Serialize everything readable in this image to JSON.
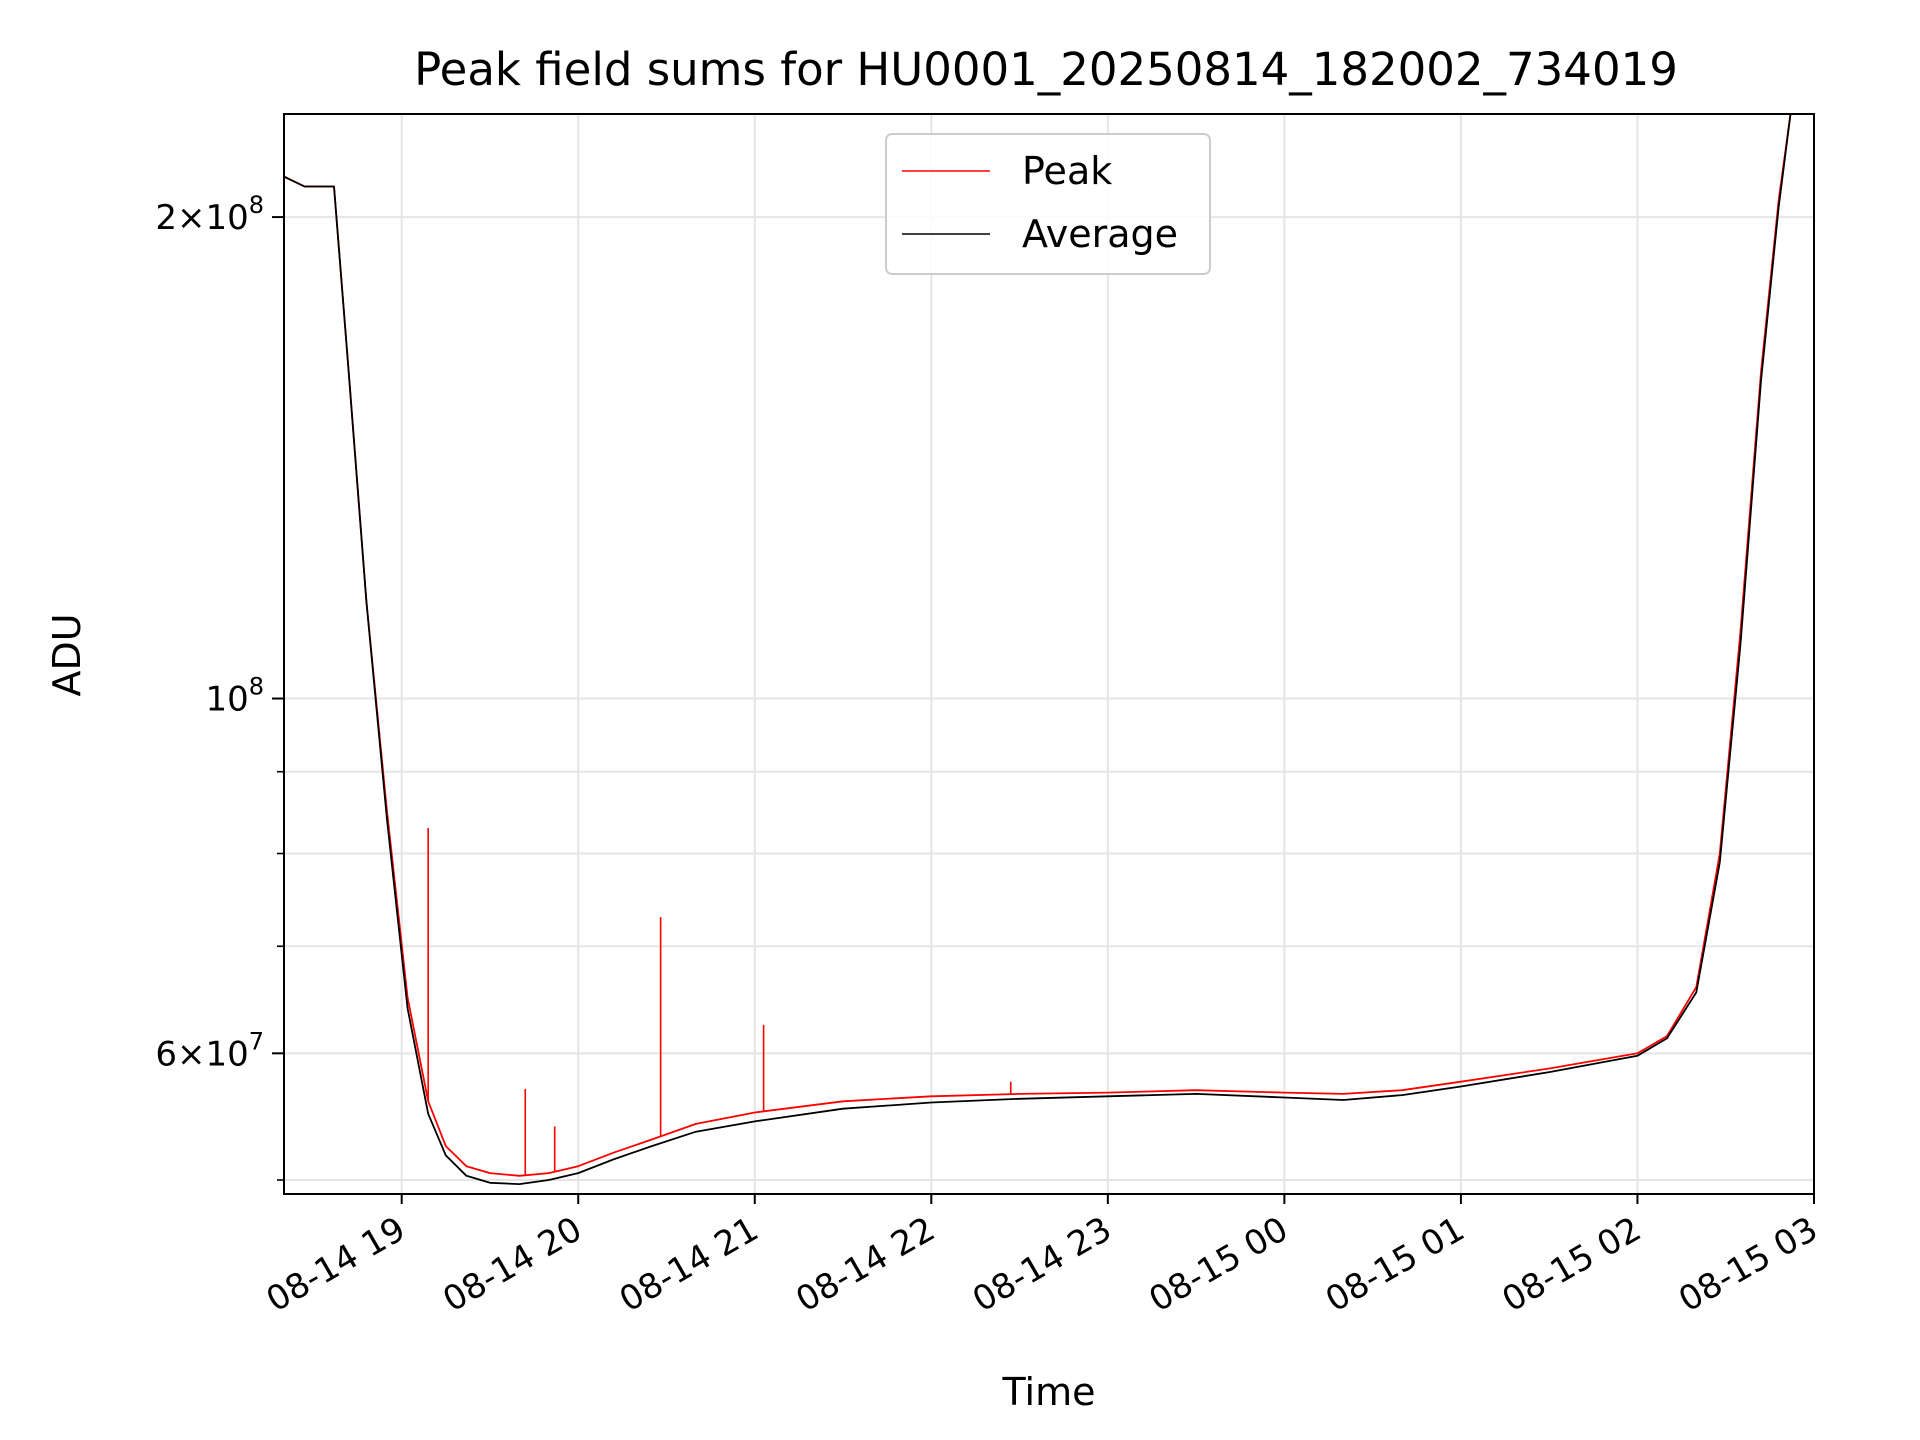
{
  "chart_data": {
    "type": "line",
    "title": "Peak field sums for HU0001_20250814_182002_734019",
    "xlabel": "Time",
    "ylabel": "ADU",
    "y_scale": "log",
    "ylim": [
      49000000,
      232000000
    ],
    "xlim": [
      "2025-08-14 18:20",
      "2025-08-15 03:00"
    ],
    "x_ticks": [
      "08-14 19",
      "08-14 20",
      "08-14 21",
      "08-14 22",
      "08-14 23",
      "08-15 00",
      "08-15 01",
      "08-15 02",
      "08-15 03"
    ],
    "y_ticks": [
      {
        "value": 60000000,
        "base": "6",
        "exponent": "7"
      },
      {
        "value": 100000000,
        "base": "",
        "exponent": "8"
      },
      {
        "value": 200000000,
        "base": "2",
        "exponent": "8"
      }
    ],
    "y_minor_ticks": [
      50000000,
      70000000,
      80000000,
      90000000
    ],
    "grid": true,
    "legend": "top-center",
    "colors": {
      "peak": "#ff0000",
      "average": "#000000",
      "grid": "#e5e5e5"
    },
    "series": [
      {
        "name": "Peak",
        "x": [
          "2025-08-14 18:20",
          "2025-08-14 18:27",
          "2025-08-14 18:31",
          "2025-08-14 18:37",
          "2025-08-14 18:42",
          "2025-08-14 18:48",
          "2025-08-14 18:55",
          "2025-08-14 19:02",
          "2025-08-14 19:09",
          "2025-08-14 19:15",
          "2025-08-14 19:22",
          "2025-08-14 19:30",
          "2025-08-14 19:40",
          "2025-08-14 19:50",
          "2025-08-14 20:00",
          "2025-08-14 20:12",
          "2025-08-14 20:25",
          "2025-08-14 20:40",
          "2025-08-14 21:00",
          "2025-08-14 21:30",
          "2025-08-14 22:00",
          "2025-08-14 22:30",
          "2025-08-14 23:00",
          "2025-08-14 23:30",
          "2025-08-15 00:00",
          "2025-08-15 00:20",
          "2025-08-15 00:40",
          "2025-08-15 01:00",
          "2025-08-15 01:30",
          "2025-08-15 02:00",
          "2025-08-15 02:10",
          "2025-08-15 02:20",
          "2025-08-15 02:28",
          "2025-08-15 02:35",
          "2025-08-15 02:42",
          "2025-08-15 02:48",
          "2025-08-15 02:52"
        ],
        "values": [
          212000000,
          209000000,
          209000000,
          209000000,
          160000000,
          115000000,
          85000000,
          65000000,
          56000000,
          52500000,
          51000000,
          50500000,
          50300000,
          50500000,
          51000000,
          52000000,
          53000000,
          54200000,
          55100000,
          56000000,
          56400000,
          56600000,
          56700000,
          56900000,
          56700000,
          56600000,
          56900000,
          57600000,
          58700000,
          60000000,
          61500000,
          66000000,
          80000000,
          110000000,
          160000000,
          205000000,
          232000000
        ]
      },
      {
        "name": "Average",
        "x": [
          "2025-08-14 18:20",
          "2025-08-14 18:27",
          "2025-08-14 18:31",
          "2025-08-14 18:37",
          "2025-08-14 18:42",
          "2025-08-14 18:48",
          "2025-08-14 18:55",
          "2025-08-14 19:02",
          "2025-08-14 19:09",
          "2025-08-14 19:15",
          "2025-08-14 19:22",
          "2025-08-14 19:30",
          "2025-08-14 19:40",
          "2025-08-14 19:50",
          "2025-08-14 20:00",
          "2025-08-14 20:12",
          "2025-08-14 20:25",
          "2025-08-14 20:40",
          "2025-08-14 21:00",
          "2025-08-14 21:30",
          "2025-08-14 22:00",
          "2025-08-14 22:30",
          "2025-08-14 23:00",
          "2025-08-14 23:30",
          "2025-08-15 00:00",
          "2025-08-15 00:20",
          "2025-08-15 00:40",
          "2025-08-15 01:00",
          "2025-08-15 01:30",
          "2025-08-15 02:00",
          "2025-08-15 02:10",
          "2025-08-15 02:20",
          "2025-08-15 02:28",
          "2025-08-15 02:35",
          "2025-08-15 02:42",
          "2025-08-15 02:48",
          "2025-08-15 02:52"
        ],
        "values": [
          212000000,
          209000000,
          209000000,
          209000000,
          160000000,
          115000000,
          84000000,
          64000000,
          55000000,
          51800000,
          50300000,
          49800000,
          49700000,
          50000000,
          50500000,
          51500000,
          52500000,
          53600000,
          54400000,
          55400000,
          55900000,
          56200000,
          56400000,
          56600000,
          56300000,
          56100000,
          56500000,
          57200000,
          58400000,
          59800000,
          61300000,
          65500000,
          79000000,
          108000000,
          158000000,
          203000000,
          232000000
        ]
      }
    ],
    "spikes": [
      {
        "x": "2025-08-14 19:09",
        "value": 83000000
      },
      {
        "x": "2025-08-14 19:42",
        "value": 57000000
      },
      {
        "x": "2025-08-14 19:52",
        "value": 54000000
      },
      {
        "x": "2025-08-14 20:28",
        "value": 73000000
      },
      {
        "x": "2025-08-14 21:03",
        "value": 62500000
      },
      {
        "x": "2025-08-14 22:27",
        "value": 57600000
      }
    ]
  }
}
